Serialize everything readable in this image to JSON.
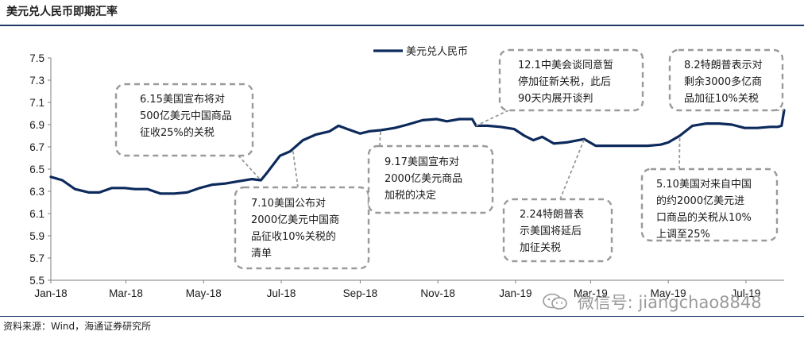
{
  "header": {
    "title": "美元兑人民币即期汇率"
  },
  "footer": {
    "source": "资料来源：Wind，海通证券研究所"
  },
  "watermark": {
    "text": "微信号: jiangchao8848",
    "icon": "wechat-icon"
  },
  "colors": {
    "series": "#0d2a5c",
    "rule": "#1f3864",
    "box_border": "#9a9a9a"
  },
  "chart_data": {
    "type": "line",
    "title": "",
    "xlabel": "",
    "ylabel": "",
    "ylim": [
      5.5,
      7.5
    ],
    "yticks": [
      "7.5",
      "7.3",
      "7.1",
      "6.9",
      "6.7",
      "6.5",
      "6.3",
      "6.1",
      "5.9",
      "5.7",
      "5.5"
    ],
    "xlim": [
      "2018-01-01",
      "2019-07-31"
    ],
    "xticks": [
      "Jan-18",
      "Mar-18",
      "May-18",
      "Jul-18",
      "Sep-18",
      "Nov-18",
      "Jan-19",
      "Mar-19",
      "May-19",
      "Jul-19"
    ],
    "xtick_dates": [
      "2018-01-01",
      "2018-03-01",
      "2018-05-01",
      "2018-07-01",
      "2018-09-01",
      "2018-11-01",
      "2019-01-01",
      "2019-03-01",
      "2019-05-01",
      "2019-07-01"
    ],
    "grid": false,
    "legend": "top-center",
    "series": [
      {
        "name": "美元兑人民币",
        "points": [
          [
            "2018-01-01",
            6.43
          ],
          [
            "2018-01-10",
            6.4
          ],
          [
            "2018-01-20",
            6.32
          ],
          [
            "2018-01-31",
            6.29
          ],
          [
            "2018-02-08",
            6.29
          ],
          [
            "2018-02-18",
            6.33
          ],
          [
            "2018-02-28",
            6.33
          ],
          [
            "2018-03-08",
            6.32
          ],
          [
            "2018-03-18",
            6.32
          ],
          [
            "2018-03-28",
            6.28
          ],
          [
            "2018-04-08",
            6.28
          ],
          [
            "2018-04-18",
            6.29
          ],
          [
            "2018-04-28",
            6.33
          ],
          [
            "2018-05-08",
            6.36
          ],
          [
            "2018-05-18",
            6.37
          ],
          [
            "2018-05-28",
            6.39
          ],
          [
            "2018-06-08",
            6.41
          ],
          [
            "2018-06-15",
            6.4
          ],
          [
            "2018-06-20",
            6.47
          ],
          [
            "2018-06-30",
            6.62
          ],
          [
            "2018-07-08",
            6.66
          ],
          [
            "2018-07-18",
            6.76
          ],
          [
            "2018-07-28",
            6.81
          ],
          [
            "2018-08-08",
            6.84
          ],
          [
            "2018-08-15",
            6.89
          ],
          [
            "2018-08-22",
            6.86
          ],
          [
            "2018-09-01",
            6.82
          ],
          [
            "2018-09-08",
            6.84
          ],
          [
            "2018-09-17",
            6.85
          ],
          [
            "2018-09-28",
            6.87
          ],
          [
            "2018-10-08",
            6.9
          ],
          [
            "2018-10-20",
            6.94
          ],
          [
            "2018-10-31",
            6.95
          ],
          [
            "2018-11-08",
            6.93
          ],
          [
            "2018-11-18",
            6.95
          ],
          [
            "2018-11-28",
            6.95
          ],
          [
            "2018-12-01",
            6.89
          ],
          [
            "2018-12-10",
            6.89
          ],
          [
            "2018-12-20",
            6.88
          ],
          [
            "2018-12-31",
            6.86
          ],
          [
            "2019-01-08",
            6.8
          ],
          [
            "2019-01-15",
            6.76
          ],
          [
            "2019-01-22",
            6.79
          ],
          [
            "2019-01-31",
            6.73
          ],
          [
            "2019-02-10",
            6.74
          ],
          [
            "2019-02-24",
            6.77
          ],
          [
            "2019-03-05",
            6.71
          ],
          [
            "2019-03-15",
            6.71
          ],
          [
            "2019-03-25",
            6.71
          ],
          [
            "2019-04-05",
            6.71
          ],
          [
            "2019-04-15",
            6.71
          ],
          [
            "2019-04-25",
            6.72
          ],
          [
            "2019-05-01",
            6.74
          ],
          [
            "2019-05-10",
            6.8
          ],
          [
            "2019-05-20",
            6.89
          ],
          [
            "2019-05-31",
            6.91
          ],
          [
            "2019-06-10",
            6.91
          ],
          [
            "2019-06-20",
            6.9
          ],
          [
            "2019-06-30",
            6.87
          ],
          [
            "2019-07-10",
            6.87
          ],
          [
            "2019-07-20",
            6.88
          ],
          [
            "2019-07-26",
            6.88
          ],
          [
            "2019-07-29",
            6.89
          ],
          [
            "2019-07-31",
            7.03
          ]
        ]
      }
    ],
    "annotations": [
      {
        "lines": [
          "6.15美国宣布将对",
          "500亿美元中国商品",
          "征收25%的关税"
        ],
        "date": "2018-06-15",
        "value": 6.4
      },
      {
        "lines": [
          "7.10美国公布对",
          "2000亿美元中国商",
          "品征收10%关税的",
          "清单"
        ],
        "date": "2018-07-10",
        "value": 6.68
      },
      {
        "lines": [
          "9.17美国宣布对",
          "2000亿美元商品",
          "加税的决定"
        ],
        "date": "2018-09-17",
        "value": 6.85
      },
      {
        "lines": [
          "12.1中美会谈同意暂",
          "停加征新关税，此后",
          "90天内展开谈判"
        ],
        "date": "2018-12-01",
        "value": 6.89
      },
      {
        "lines": [
          "2.24特朗普表",
          "示美国将延后",
          "加征关税"
        ],
        "date": "2019-02-24",
        "value": 6.77
      },
      {
        "lines": [
          "5.10美国对来自中国",
          "的约2000亿美元进",
          "口商品的关税从10%",
          "上调至25%"
        ],
        "date": "2019-05-10",
        "value": 6.8
      },
      {
        "lines": [
          "8.2特朗普表示对",
          "剩余3000多亿商",
          "品加征10%关税"
        ],
        "date": "2019-07-31",
        "value": 7.03
      }
    ]
  }
}
